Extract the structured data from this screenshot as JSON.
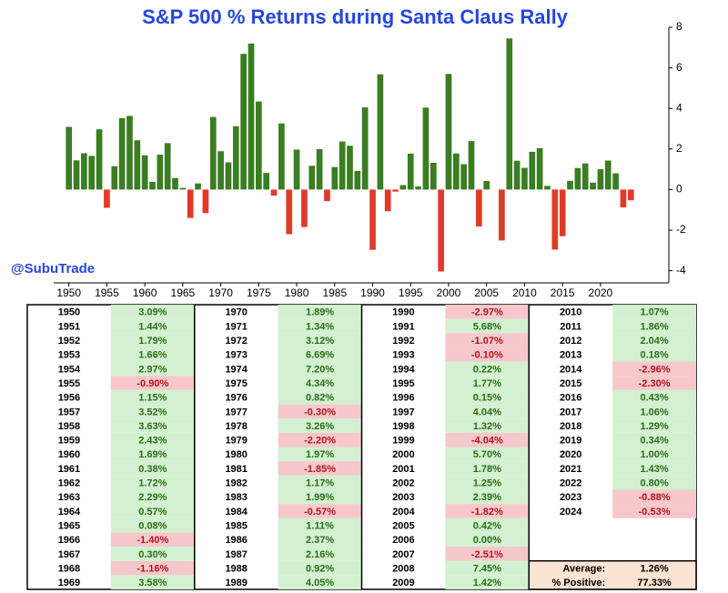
{
  "chart_data": {
    "type": "bar",
    "title": "S&P 500 % Returns during Santa Claus Rally",
    "watermark": "@SubuTrade",
    "x": [
      1950,
      1951,
      1952,
      1953,
      1954,
      1955,
      1956,
      1957,
      1958,
      1959,
      1960,
      1961,
      1962,
      1963,
      1964,
      1965,
      1966,
      1967,
      1968,
      1969,
      1970,
      1971,
      1972,
      1973,
      1974,
      1975,
      1976,
      1977,
      1978,
      1979,
      1980,
      1981,
      1982,
      1983,
      1984,
      1985,
      1986,
      1987,
      1988,
      1989,
      1990,
      1991,
      1992,
      1993,
      1994,
      1995,
      1996,
      1997,
      1998,
      1999,
      2000,
      2001,
      2002,
      2003,
      2004,
      2005,
      2006,
      2007,
      2008,
      2009,
      2010,
      2011,
      2012,
      2013,
      2014,
      2015,
      2016,
      2017,
      2018,
      2019,
      2020,
      2021,
      2022,
      2023,
      2024
    ],
    "values": [
      3.09,
      1.44,
      1.79,
      1.66,
      2.97,
      -0.9,
      1.15,
      3.52,
      3.63,
      2.43,
      1.69,
      0.38,
      1.72,
      2.29,
      0.57,
      0.08,
      -1.4,
      0.3,
      -1.16,
      3.58,
      1.89,
      1.34,
      3.12,
      6.69,
      7.2,
      4.34,
      0.82,
      -0.3,
      3.26,
      -2.2,
      1.97,
      -1.85,
      1.17,
      1.99,
      -0.57,
      1.11,
      2.37,
      2.16,
      0.92,
      4.05,
      -2.97,
      5.68,
      -1.07,
      -0.1,
      0.22,
      1.77,
      0.15,
      4.04,
      1.32,
      -4.04,
      5.7,
      1.78,
      1.25,
      2.39,
      -1.82,
      0.42,
      0.0,
      -2.51,
      7.45,
      1.42,
      1.07,
      1.86,
      2.04,
      0.18,
      -2.96,
      -2.3,
      0.43,
      1.06,
      1.29,
      0.34,
      1.0,
      1.43,
      0.8,
      -0.88,
      -0.53
    ],
    "value_labels": [
      "3.09%",
      "1.44%",
      "1.79%",
      "1.66%",
      "2.97%",
      "-0.90%",
      "1.15%",
      "3.52%",
      "3.63%",
      "2.43%",
      "1.69%",
      "0.38%",
      "1.72%",
      "2.29%",
      "0.57%",
      "0.08%",
      "-1.40%",
      "0.30%",
      "-1.16%",
      "3.58%",
      "1.89%",
      "1.34%",
      "3.12%",
      "6.69%",
      "7.20%",
      "4.34%",
      "0.82%",
      "-0.30%",
      "3.26%",
      "-2.20%",
      "1.97%",
      "-1.85%",
      "1.17%",
      "1.99%",
      "-0.57%",
      "1.11%",
      "2.37%",
      "2.16%",
      "0.92%",
      "4.05%",
      "-2.97%",
      "5.68%",
      "-1.07%",
      "-0.10%",
      "0.22%",
      "1.77%",
      "0.15%",
      "4.04%",
      "1.32%",
      "-4.04%",
      "5.70%",
      "1.78%",
      "1.25%",
      "2.39%",
      "-1.82%",
      "0.42%",
      "0.00%",
      "-2.51%",
      "7.45%",
      "1.42%",
      "1.07%",
      "1.86%",
      "2.04%",
      "0.18%",
      "-2.96%",
      "-2.30%",
      "0.43%",
      "1.06%",
      "1.29%",
      "0.34%",
      "1.00%",
      "1.43%",
      "0.80%",
      "-0.88%",
      "-0.53%"
    ],
    "positive_color": "#3a7d22",
    "negative_color": "#e03a2a",
    "xlim": [
      1948,
      2029
    ],
    "xticks": [
      1950,
      1955,
      1960,
      1965,
      1970,
      1975,
      1980,
      1985,
      1990,
      1995,
      2000,
      2005,
      2010,
      2015,
      2020
    ],
    "ylim": [
      -4.6,
      8
    ],
    "yticks": [
      -4,
      -2,
      0,
      2,
      4,
      6,
      8
    ],
    "stats": [
      {
        "label": "Average:",
        "value": "1.26%"
      },
      {
        "label": "% Positive:",
        "value": "77.33%"
      }
    ]
  }
}
